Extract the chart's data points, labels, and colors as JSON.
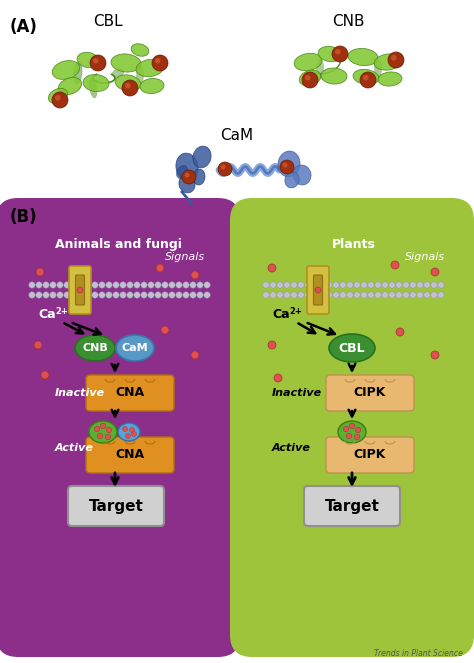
{
  "title_A": "(A)",
  "title_B": "(B)",
  "label_CBL": "CBL",
  "label_CNB": "CNB",
  "label_CaM": "CaM",
  "label_animals": "Animals and fungi",
  "label_plants": "Plants",
  "label_signals": "Signals",
  "label_inactive": "Inactive",
  "label_active": "Active",
  "label_ca2": "Ca",
  "label_ca2_sup": "2+",
  "label_target": "Target",
  "label_CNA": "CNA",
  "label_CIPK": "CIPK",
  "label_CNB_inner": "CNB",
  "label_CaM_inner": "CaM",
  "label_CBL_inner": "CBL",
  "label_trends": "Trends in Plant Science",
  "bg_color": "#ffffff",
  "purple_cell": "#8b2f8b",
  "green_cell": "#9dc43a",
  "membrane_gray": "#c0c0d0",
  "yellow_channel": "#d4c040",
  "orange_box": "#e09020",
  "orange_box_light": "#e8b870",
  "cnb_green": "#3a9030",
  "cam_blue": "#5898c8",
  "target_gray": "#c8c8c8",
  "ca_dot": "#e05050"
}
